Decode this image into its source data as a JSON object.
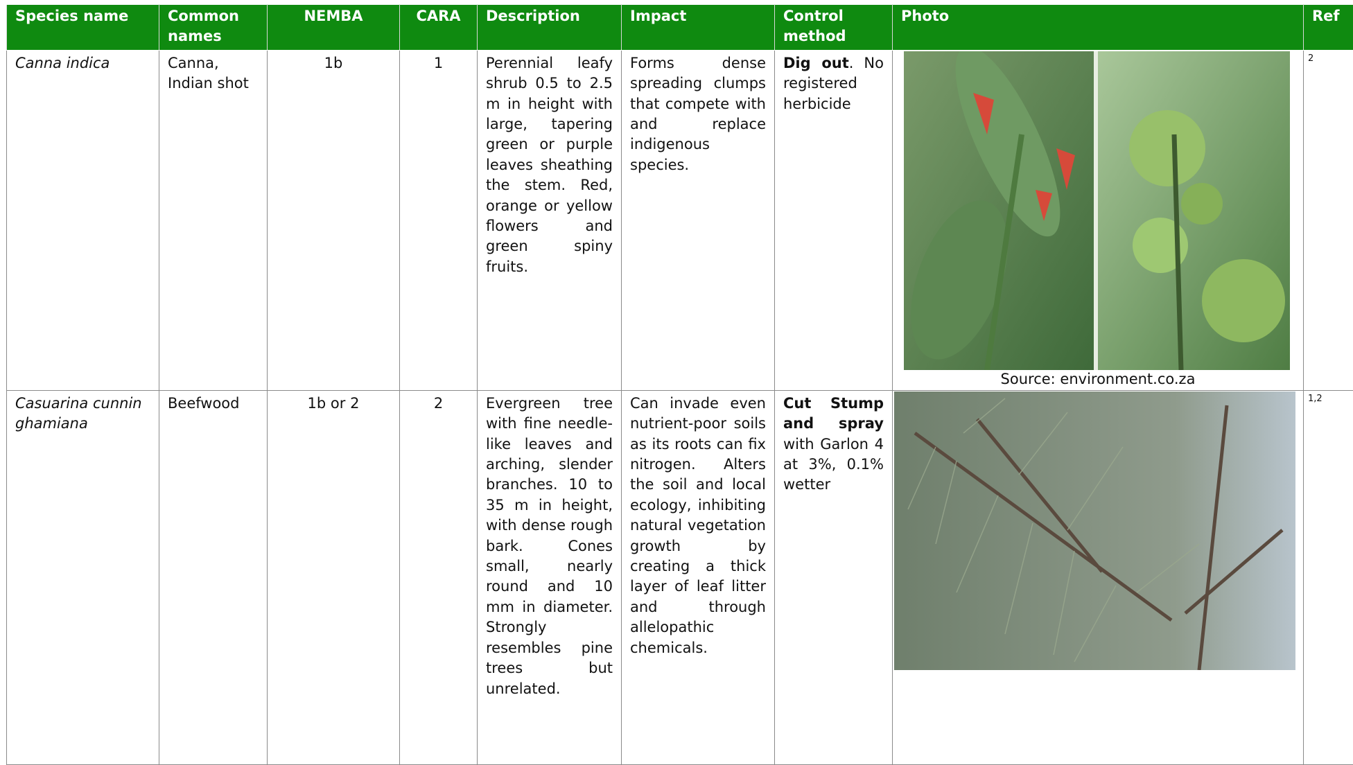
{
  "table": {
    "header": [
      "Species name",
      "Common names",
      "NEMBA",
      "CARA",
      "Description",
      "Impact",
      "Control method",
      "Photo",
      "Ref"
    ],
    "rows": [
      {
        "species": "Canna indica",
        "common": "Canna, Indian shot",
        "nemba": "1b",
        "cara": "1",
        "description": "Perennial leafy shrub 0.5 to 2.5 m in height with large, tapering green or purple leaves sheathing the stem. Red, orange or yellow flowers and green spiny fruits.",
        "impact": "Forms dense spreading clumps that compete with and replace indigenous species.",
        "control": [
          "Dig out",
          ". No registered herbicide"
        ],
        "photo_caption": "Source: environment.co.za",
        "ref": "2"
      },
      {
        "species": "Casuarina cunninghamiana",
        "common": "Beefwood",
        "nemba": "1b or 2",
        "cara": "2",
        "description": "Evergreen tree with fine needle-like leaves and arching, slender branches. 10 to 35 m in height, with dense rough bark. Cones small, nearly round and 10 mm in diameter. Strongly resembles pine trees but unrelated.",
        "impact": "Can invade even nutrient-poor soils as its roots can fix nitrogen. Alters the soil and local ecology, inhibiting natural vegetation growth by creating a thick layer of leaf litter and through allelopathic chemicals.",
        "control": [
          "Cut Stump and spray",
          " with Garlon 4 at 3%, 0.1% wetter"
        ],
        "ref": "1,2"
      }
    ]
  }
}
